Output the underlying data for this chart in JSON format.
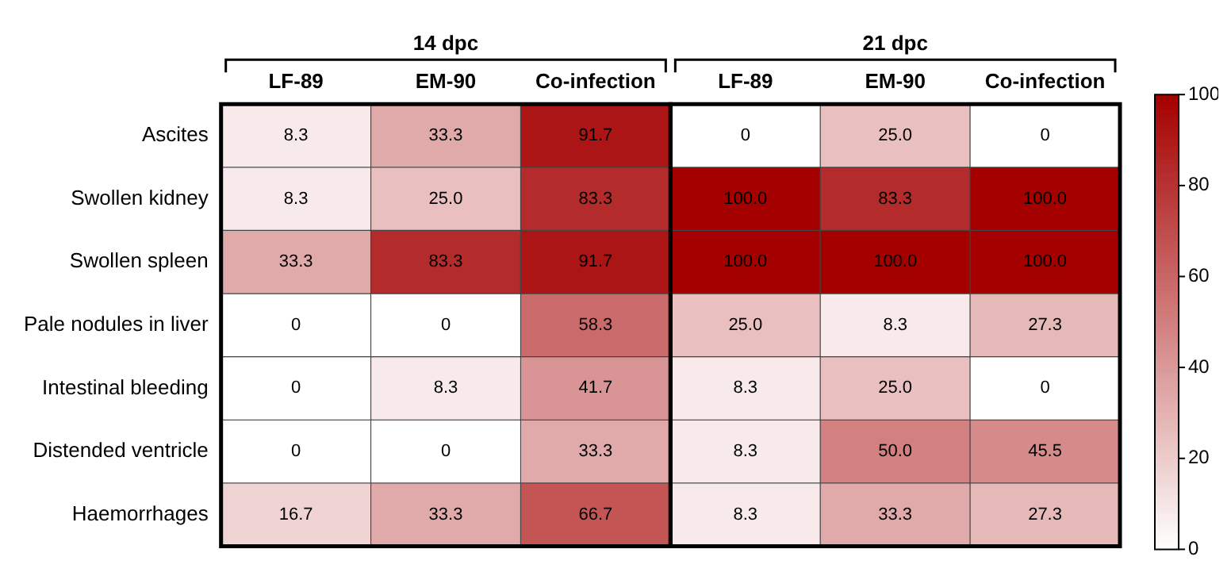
{
  "chart_data": {
    "type": "heatmap",
    "categories": [
      "LF-89",
      "EM-90",
      "Co-infection",
      "LF-89",
      "EM-90",
      "Co-infection"
    ],
    "y_categories": [
      "Ascites",
      "Swollen kidney",
      "Swollen spleen",
      "Pale nodules in liver",
      "Intestinal bleeding",
      "Distended ventricle",
      "Haemorrhages"
    ],
    "cells": [
      [
        8.3,
        33.3,
        91.7,
        0,
        25.0,
        0
      ],
      [
        8.3,
        25.0,
        83.3,
        100,
        83.3,
        100
      ],
      [
        33.3,
        83.3,
        91.7,
        100,
        100,
        100
      ],
      [
        0,
        0,
        58.3,
        25.0,
        8.3,
        27.3
      ],
      [
        0,
        8.3,
        41.7,
        8.3,
        25.0,
        0
      ],
      [
        0,
        0,
        33.3,
        8.3,
        50.0,
        45.5
      ],
      [
        16.7,
        33.3,
        66.7,
        8.3,
        33.3,
        27.3
      ]
    ],
    "cell_labels": [
      [
        "8.3",
        "33.3",
        "91.7",
        "0",
        "25.0",
        "0"
      ],
      [
        "8.3",
        "25.0",
        "83.3",
        "100.0",
        "83.3",
        "100.0"
      ],
      [
        "33.3",
        "83.3",
        "91.7",
        "100.0",
        "100.0",
        "100.0"
      ],
      [
        "0",
        "0",
        "58.3",
        "25.0",
        "8.3",
        "27.3"
      ],
      [
        "0",
        "8.3",
        "41.7",
        "8.3",
        "25.0",
        "0"
      ],
      [
        "0",
        "0",
        "33.3",
        "8.3",
        "50.0",
        "45.5"
      ],
      [
        "16.7",
        "33.3",
        "66.7",
        "8.3",
        "33.3",
        "27.3"
      ]
    ],
    "clim": [
      0,
      100
    ],
    "cticks": [
      0,
      20,
      40,
      60,
      80,
      100
    ],
    "annotations": [
      "14 dpc",
      "21 dpc"
    ]
  }
}
